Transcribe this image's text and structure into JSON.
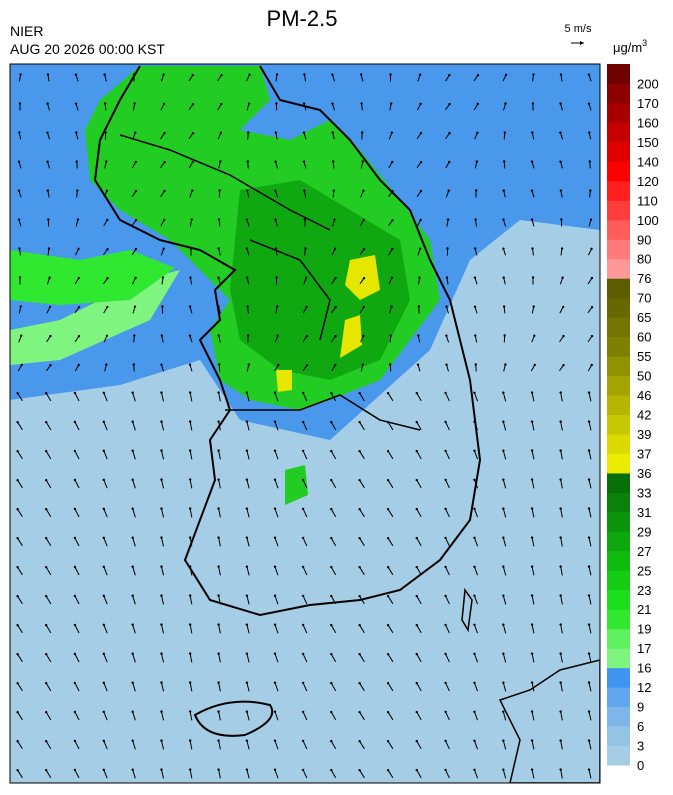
{
  "header": {
    "title": "PM-2.5",
    "agency": "NIER",
    "datetime": "AUG 20 2026 00:00 KST",
    "wind_scale": "5 m/s",
    "unit": "μg/m",
    "unit_exponent": "3"
  },
  "colorbar": {
    "levels": [
      0,
      3,
      6,
      9,
      12,
      16,
      17,
      19,
      21,
      23,
      25,
      27,
      29,
      31,
      33,
      36,
      37,
      39,
      42,
      46,
      50,
      55,
      60,
      65,
      70,
      76,
      80,
      90,
      100,
      110,
      120,
      140,
      150,
      160,
      170,
      200
    ],
    "colors": [
      "#a6cde6",
      "#95c3e6",
      "#7fb6ea",
      "#62a6ee",
      "#3f94f0",
      "#7ff57f",
      "#5ef05e",
      "#30e830",
      "#1cde1c",
      "#14cc14",
      "#10bb10",
      "#0ea80e",
      "#0c950c",
      "#0a820a",
      "#087008",
      "#ecec00",
      "#dada00",
      "#c8c800",
      "#b6b600",
      "#a4a400",
      "#929200",
      "#808000",
      "#747400",
      "#686800",
      "#5c5c00",
      "#ff9999",
      "#ff7a7a",
      "#ff5c5c",
      "#ff3d3d",
      "#ff1f1f",
      "#ff0000",
      "#e00000",
      "#c40000",
      "#a80000",
      "#8c0000",
      "#700000"
    ]
  }
}
